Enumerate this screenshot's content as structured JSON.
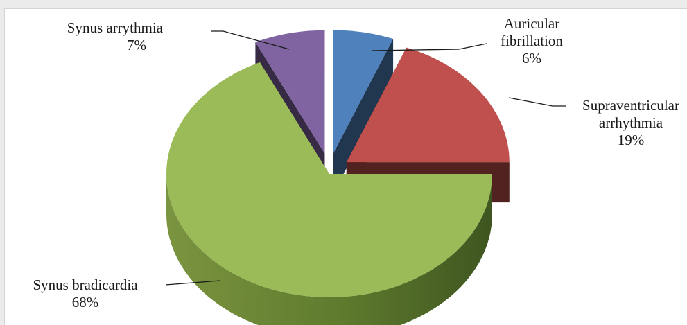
{
  "chart_data": {
    "type": "pie",
    "variant": "3d-exploded",
    "slices": [
      {
        "label_lines": [
          "Auricular",
          "fibrillation"
        ],
        "pct_label": "6%",
        "value": 6,
        "color": "#4f81bd"
      },
      {
        "label_lines": [
          "Supraventricular",
          "arrhythmia"
        ],
        "pct_label": "19%",
        "value": 19,
        "color": "#c0504d"
      },
      {
        "label_lines": [
          "Synus bradicardia"
        ],
        "pct_label": "68%",
        "value": 68,
        "color": "#9bbb59"
      },
      {
        "label_lines": [
          "Synus arrythmia"
        ],
        "pct_label": "7%",
        "value": 7,
        "color": "#8064a2"
      }
    ]
  }
}
